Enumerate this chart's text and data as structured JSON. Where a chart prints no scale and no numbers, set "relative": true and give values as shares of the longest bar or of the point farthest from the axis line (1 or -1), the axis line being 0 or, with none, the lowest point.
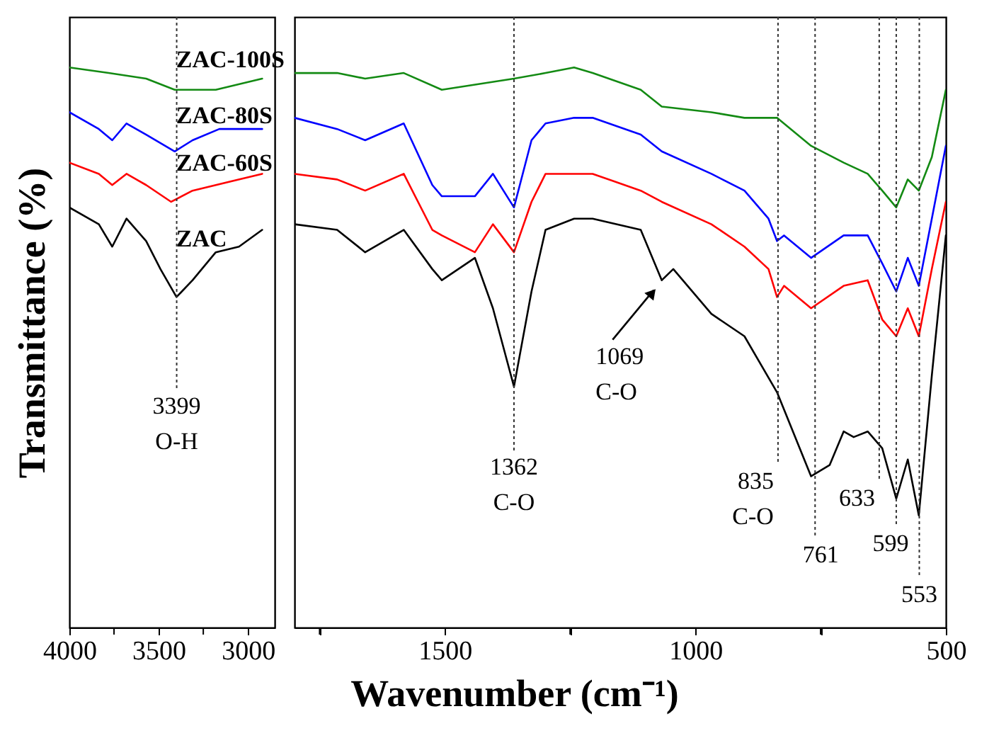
{
  "chart_data": [
    {
      "type": "line",
      "relative": true,
      "ylabel": "Transmittance (%)",
      "xlim": [
        4000,
        2850
      ],
      "xticks": [
        4000,
        {
          "value": 3750,
          "label": null
        },
        3500,
        {
          "value": 3250,
          "label": null
        },
        3000
      ],
      "series": [
        {
          "name": "ZAC-100S",
          "color": "#138a13",
          "x": [
            4000,
            3780,
            3570,
            3410,
            3340,
            3180,
            2920
          ],
          "values": [
            1.0,
            0.99,
            0.98,
            0.96,
            0.96,
            0.96,
            0.98
          ]
        },
        {
          "name": "ZAC-80S",
          "color": "#0000ff",
          "x": [
            4000,
            3835,
            3760,
            3680,
            3570,
            3410,
            3310,
            3160,
            2920
          ],
          "values": [
            0.92,
            0.89,
            0.87,
            0.9,
            0.88,
            0.85,
            0.87,
            0.89,
            0.89
          ]
        },
        {
          "name": "ZAC-60S",
          "color": "#ff0000",
          "x": [
            4000,
            3835,
            3760,
            3680,
            3570,
            3430,
            3310,
            2920
          ],
          "values": [
            0.83,
            0.81,
            0.79,
            0.81,
            0.79,
            0.76,
            0.78,
            0.81
          ]
        },
        {
          "name": "ZAC",
          "color": "#000000",
          "x": [
            4000,
            3835,
            3760,
            3680,
            3570,
            3490,
            3400,
            3310,
            3180,
            3050,
            2920
          ],
          "values": [
            0.75,
            0.72,
            0.68,
            0.73,
            0.69,
            0.64,
            0.59,
            0.62,
            0.67,
            0.68,
            0.71
          ]
        }
      ],
      "ref_lines": [
        {
          "axis": "x",
          "value": 3399,
          "label": "3399 O-H",
          "line_style": "dotted"
        }
      ]
    },
    {
      "type": "line",
      "relative": true,
      "xlabel": "Wavenumber (cm⁻¹)",
      "xlim": [
        1800,
        500
      ],
      "xticks": [
        {
          "value": 1750,
          "label": null
        },
        1500,
        {
          "value": 1250,
          "label": null
        },
        1000,
        {
          "value": 750,
          "label": null
        },
        500
      ],
      "series": [
        {
          "color": "#138a13",
          "x": [
            1800,
            1715,
            1659,
            1582,
            1506,
            1362,
            1299,
            1242,
            1205,
            1109,
            1067,
            968,
            902,
            837,
            769,
            704,
            656,
            627,
            599,
            576,
            554,
            528,
            500
          ],
          "values": [
            0.99,
            0.99,
            0.98,
            0.99,
            0.96,
            0.98,
            0.99,
            1.0,
            0.99,
            0.96,
            0.93,
            0.92,
            0.91,
            0.91,
            0.86,
            0.83,
            0.81,
            0.78,
            0.75,
            0.8,
            0.78,
            0.84,
            0.96
          ]
        },
        {
          "color": "#0000ff",
          "x": [
            1800,
            1715,
            1659,
            1582,
            1525,
            1506,
            1440,
            1404,
            1362,
            1327,
            1299,
            1242,
            1205,
            1109,
            1067,
            968,
            902,
            854,
            837,
            823,
            769,
            704,
            656,
            627,
            599,
            576,
            554,
            528,
            500
          ],
          "values": [
            0.91,
            0.89,
            0.87,
            0.9,
            0.79,
            0.77,
            0.77,
            0.81,
            0.75,
            0.87,
            0.9,
            0.91,
            0.91,
            0.88,
            0.85,
            0.81,
            0.78,
            0.73,
            0.69,
            0.7,
            0.66,
            0.7,
            0.7,
            0.65,
            0.6,
            0.66,
            0.61,
            0.73,
            0.86
          ]
        },
        {
          "color": "#ff0000",
          "x": [
            1800,
            1715,
            1659,
            1582,
            1525,
            1506,
            1440,
            1404,
            1362,
            1327,
            1299,
            1242,
            1205,
            1109,
            1067,
            968,
            902,
            854,
            837,
            823,
            769,
            704,
            656,
            627,
            599,
            576,
            554,
            528,
            500
          ],
          "values": [
            0.81,
            0.8,
            0.78,
            0.81,
            0.71,
            0.7,
            0.67,
            0.72,
            0.67,
            0.76,
            0.81,
            0.81,
            0.81,
            0.78,
            0.76,
            0.72,
            0.68,
            0.64,
            0.59,
            0.61,
            0.57,
            0.61,
            0.62,
            0.55,
            0.52,
            0.57,
            0.52,
            0.64,
            0.76
          ]
        },
        {
          "color": "#000000",
          "x": [
            1800,
            1715,
            1659,
            1582,
            1525,
            1506,
            1440,
            1404,
            1362,
            1327,
            1299,
            1242,
            1205,
            1109,
            1067,
            1044,
            968,
            902,
            837,
            769,
            732,
            704,
            684,
            656,
            627,
            599,
            576,
            554,
            528,
            500
          ],
          "values": [
            0.72,
            0.71,
            0.67,
            0.71,
            0.64,
            0.62,
            0.66,
            0.57,
            0.43,
            0.6,
            0.71,
            0.73,
            0.73,
            0.71,
            0.62,
            0.64,
            0.56,
            0.52,
            0.42,
            0.27,
            0.29,
            0.35,
            0.34,
            0.35,
            0.32,
            0.23,
            0.3,
            0.2,
            0.45,
            0.7
          ]
        }
      ],
      "ref_lines": [
        {
          "axis": "x",
          "value": 1362,
          "label": "1362 C-O",
          "line_style": "dotted"
        },
        {
          "axis": "x",
          "value": 835,
          "label": "835 C-O",
          "line_style": "dotted"
        },
        {
          "axis": "x",
          "value": 761,
          "label": "761",
          "line_style": "dotted"
        },
        {
          "axis": "x",
          "value": 633,
          "label": "633",
          "line_style": "dotted"
        },
        {
          "axis": "x",
          "value": 599,
          "label": "599",
          "line_style": "dotted"
        },
        {
          "axis": "x",
          "value": 553,
          "label": "553",
          "line_style": "dotted"
        }
      ],
      "annotations": [
        {
          "text": "1069 C-O",
          "x": 1069,
          "y": 0.62
        }
      ]
    }
  ]
}
